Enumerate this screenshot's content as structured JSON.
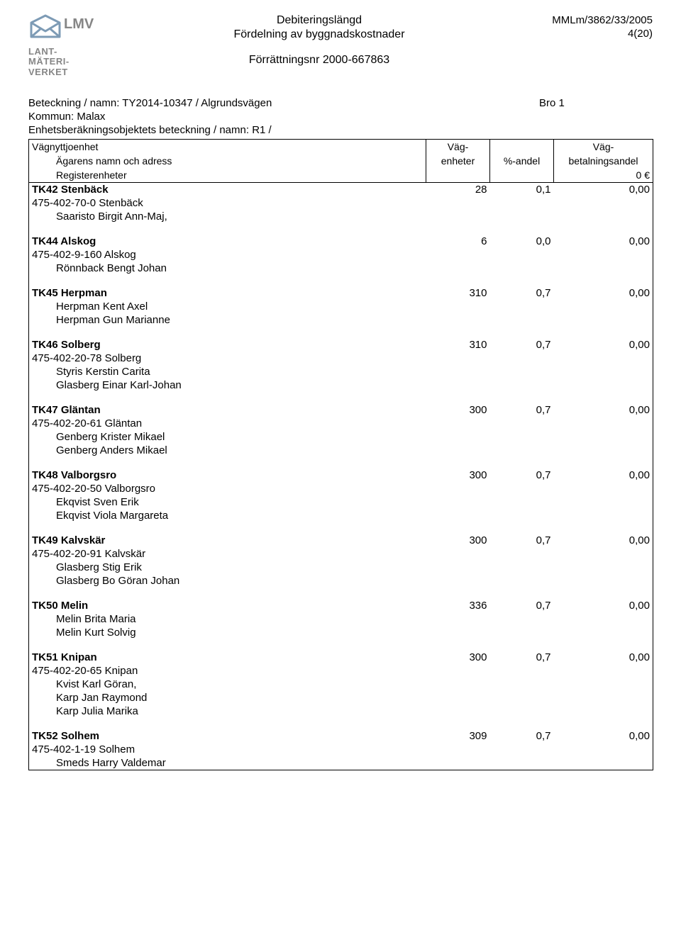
{
  "header": {
    "logo_brand": "LMV",
    "logo_line1": "LANT-",
    "logo_line2": "MÄTERI-",
    "logo_line3": "VERKET",
    "title1": "Debiteringslängd",
    "title2": "Fördelning av byggnadskostnader",
    "title3": "Förrättningsnr 2000-667863",
    "ref": "MMLm/3862/33/2005",
    "page": "4(20)"
  },
  "meta": {
    "beteckning_label": "Beteckning / namn:  TY2014-10347 / Algrundsvägen",
    "bro": "Bro 1",
    "kommun": "Kommun:  Malax",
    "enhets": "Enhetsberäkningsobjektets beteckning / namn:  R1 /"
  },
  "thead": {
    "r1c1": "Vägnyttjoenhet",
    "r1c2": "Väg-",
    "r1c3": "",
    "r1c4": "Väg-",
    "r2c1": "Ägarens namn och adress",
    "r2c2": "enheter",
    "r2c3": "%-andel",
    "r2c4": "betalningsandel",
    "r3c1": "Registerenheter",
    "r3c2": "",
    "r3c3": "",
    "r3c4": "0 €"
  },
  "entries": [
    {
      "code": "TK42 Stenbäck",
      "enheter": "28",
      "andel": "0,1",
      "bet": "0,00",
      "lines": [
        "475-402-70-0 Stenbäck",
        "Saaristo Birgit Ann-Maj,"
      ],
      "indent": [
        false,
        true
      ]
    },
    {
      "code": "TK44 Alskog",
      "enheter": "6",
      "andel": "0,0",
      "bet": "0,00",
      "lines": [
        "475-402-9-160 Alskog",
        "Rönnback Bengt Johan"
      ],
      "indent": [
        false,
        true
      ]
    },
    {
      "code": "TK45 Herpman",
      "enheter": "310",
      "andel": "0,7",
      "bet": "0,00",
      "lines": [
        "Herpman Kent Axel",
        "Herpman Gun Marianne"
      ],
      "indent": [
        true,
        true
      ]
    },
    {
      "code": "TK46 Solberg",
      "enheter": "310",
      "andel": "0,7",
      "bet": "0,00",
      "lines": [
        "475-402-20-78 Solberg",
        "Styris Kerstin Carita",
        "Glasberg Einar Karl-Johan"
      ],
      "indent": [
        false,
        true,
        true
      ]
    },
    {
      "code": "TK47 Gläntan",
      "enheter": "300",
      "andel": "0,7",
      "bet": "0,00",
      "lines": [
        "475-402-20-61 Gläntan",
        "Genberg Krister Mikael",
        "Genberg Anders Mikael"
      ],
      "indent": [
        false,
        true,
        true
      ]
    },
    {
      "code": "TK48 Valborgsro",
      "enheter": "300",
      "andel": "0,7",
      "bet": "0,00",
      "lines": [
        "475-402-20-50 Valborgsro",
        "Ekqvist Sven Erik",
        "Ekqvist Viola Margareta"
      ],
      "indent": [
        false,
        true,
        true
      ]
    },
    {
      "code": "TK49 Kalvskär",
      "enheter": "300",
      "andel": "0,7",
      "bet": "0,00",
      "lines": [
        "475-402-20-91 Kalvskär",
        "Glasberg Stig Erik",
        "Glasberg Bo Göran Johan"
      ],
      "indent": [
        false,
        true,
        true
      ]
    },
    {
      "code": "TK50 Melin",
      "enheter": "336",
      "andel": "0,7",
      "bet": "0,00",
      "lines": [
        "Melin Brita Maria",
        "Melin Kurt Solvig"
      ],
      "indent": [
        true,
        true
      ]
    },
    {
      "code": "TK51 Knipan",
      "enheter": "300",
      "andel": "0,7",
      "bet": "0,00",
      "lines": [
        "475-402-20-65 Knipan",
        "Kvist Karl Göran,",
        "Karp Jan Raymond",
        "Karp Julia Marika"
      ],
      "indent": [
        false,
        true,
        true,
        true
      ]
    },
    {
      "code": "TK52 Solhem",
      "enheter": "309",
      "andel": "0,7",
      "bet": "0,00",
      "lines": [
        "475-402-1-19 Solhem",
        "Smeds Harry Valdemar"
      ],
      "indent": [
        false,
        true
      ]
    }
  ]
}
